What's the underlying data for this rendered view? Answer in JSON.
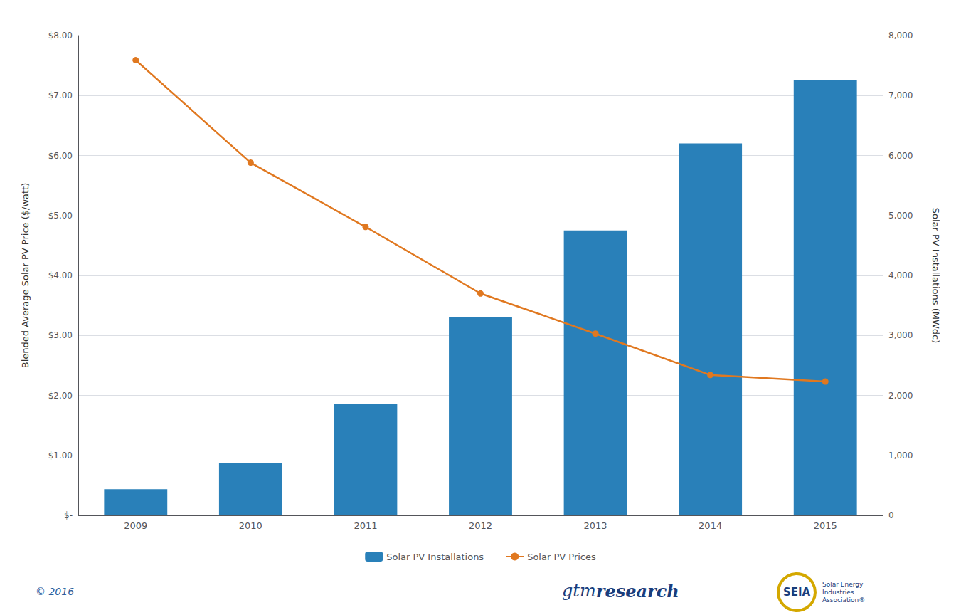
{
  "chart_data": {
    "type": "bar",
    "categories": [
      "2009",
      "2010",
      "2011",
      "2012",
      "2013",
      "2014",
      "2015"
    ],
    "series": [
      {
        "name": "Solar PV Installations",
        "type": "bar",
        "color": "#2980b9",
        "axis": "y2",
        "values": [
          435,
          878,
          1855,
          3313,
          4751,
          6201,
          7260
        ]
      },
      {
        "name": "Solar PV Prices",
        "type": "line",
        "color": "#e07820",
        "marker": "circle",
        "values": [
          7.59,
          5.88,
          4.81,
          3.7,
          3.03,
          2.34,
          2.23
        ]
      }
    ],
    "ylabel": "Blended Average Solar PV Price ($/watt)",
    "y2label": "Solar PV Installations (MWdc)",
    "ylim": [
      0,
      8.0
    ],
    "yticks": [
      {
        "value": 0,
        "label": "$-"
      },
      {
        "value": 1.0,
        "label": "$1.00"
      },
      {
        "value": 2.0,
        "label": "$2.00"
      },
      {
        "value": 3.0,
        "label": "$3.00"
      },
      {
        "value": 4.0,
        "label": "$4.00"
      },
      {
        "value": 5.0,
        "label": "$5.00"
      },
      {
        "value": 6.0,
        "label": "$6.00"
      },
      {
        "value": 7.0,
        "label": "$7.00"
      },
      {
        "value": 8.0,
        "label": "$8.00"
      }
    ],
    "y2lim": [
      0,
      8000
    ],
    "y2ticks": [
      0,
      {
        "value": 1000,
        "label": "1,000"
      },
      {
        "value": 2000,
        "label": "2,000"
      },
      {
        "value": 3000,
        "label": "3,000"
      },
      {
        "value": 4000,
        "label": "4,000"
      },
      {
        "value": 5000,
        "label": "5,000"
      },
      {
        "value": 6000,
        "label": "6,000"
      },
      {
        "value": 7000,
        "label": "7,000"
      },
      {
        "value": 8000,
        "label": "8,000"
      }
    ],
    "grid": true,
    "legend": "bottom",
    "annotations": [
      "© 2016",
      "gtm",
      "research",
      "SEIA",
      "Solar Energy\nIndustries\nAssociation®"
    ]
  }
}
